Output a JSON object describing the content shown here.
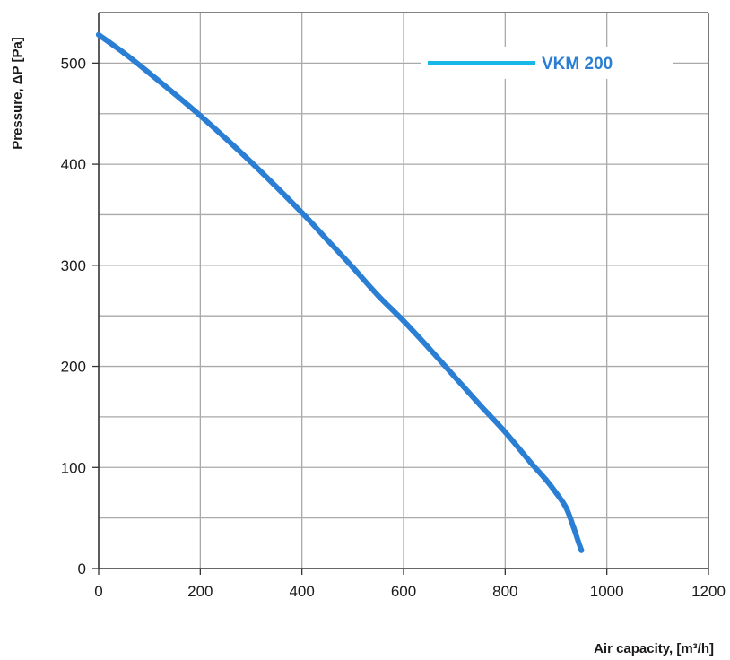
{
  "chart_data": {
    "type": "line",
    "title": "",
    "xlabel": "Air capacity, [m³/h]",
    "ylabel": "Pressure, ΔP [Pa]",
    "xlim": [
      0,
      1200
    ],
    "ylim": [
      0,
      550
    ],
    "x_ticks": [
      0,
      200,
      400,
      600,
      800,
      1000,
      1200
    ],
    "y_ticks": [
      0,
      100,
      200,
      300,
      400,
      500
    ],
    "grid": true,
    "legend_position": "top-right",
    "series": [
      {
        "name": "VKM 200",
        "color": "#2a7fd4",
        "legend_color": "#19b6e8",
        "x": [
          0,
          50,
          100,
          200,
          300,
          400,
          450,
          500,
          550,
          600,
          650,
          700,
          750,
          800,
          850,
          880,
          900,
          920,
          935,
          945,
          950
        ],
        "y": [
          528,
          510,
          490,
          448,
          402,
          352,
          325,
          298,
          270,
          245,
          218,
          190,
          162,
          135,
          105,
          88,
          75,
          60,
          40,
          25,
          18
        ]
      }
    ]
  }
}
